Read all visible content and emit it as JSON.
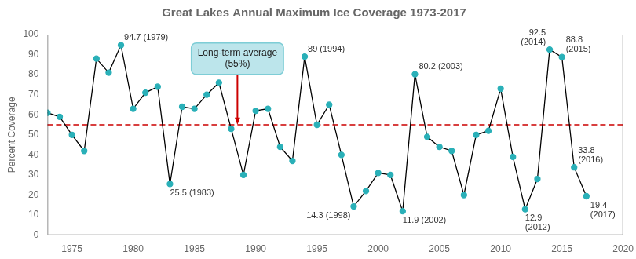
{
  "chart_data": {
    "type": "line",
    "title": "Great Lakes Annual Maximum Ice Coverage 1973-2017",
    "y_label": "Percent Coverage",
    "x": [
      1973,
      1974,
      1975,
      1976,
      1977,
      1978,
      1979,
      1980,
      1981,
      1982,
      1983,
      1984,
      1985,
      1986,
      1987,
      1988,
      1989,
      1990,
      1991,
      1992,
      1993,
      1994,
      1995,
      1996,
      1997,
      1998,
      1999,
      2000,
      2001,
      2002,
      2003,
      2004,
      2005,
      2006,
      2007,
      2008,
      2009,
      2010,
      2011,
      2012,
      2013,
      2014,
      2015,
      2016,
      2017
    ],
    "values": [
      61,
      59,
      50,
      42,
      88,
      81,
      94.7,
      63,
      71,
      74,
      25.5,
      64,
      63,
      70,
      76,
      53,
      30,
      62,
      63,
      44,
      37,
      89,
      55,
      65,
      40,
      14.3,
      22,
      31,
      30,
      11.9,
      80.2,
      49,
      44,
      42,
      20,
      50,
      52,
      73,
      39,
      12.9,
      28,
      92.5,
      88.8,
      33.8,
      19.4
    ],
    "color": "#2ab0b8",
    "marker": "circle",
    "xlim": [
      1973,
      2020
    ],
    "xticks": [
      1975,
      1980,
      1985,
      1990,
      1995,
      2000,
      2005,
      2010,
      2015,
      2020
    ],
    "ylim": [
      0,
      100
    ],
    "yticks": [
      0,
      10,
      20,
      30,
      40,
      50,
      60,
      70,
      80,
      90,
      100
    ],
    "grid": false,
    "legend": false,
    "long_term_average": {
      "value": 55,
      "color": "#cc0000",
      "line_style": "dashed",
      "label": "Long-term average\n(55%)"
    },
    "annotations": [
      {
        "x": 1979,
        "y": 94.7,
        "text": "94.7 (1979)"
      },
      {
        "x": 1983,
        "y": 25.5,
        "text": "25.5 (1983)"
      },
      {
        "x": 1994,
        "y": 89,
        "text": "89 (1994)"
      },
      {
        "x": 1998,
        "y": 14.3,
        "text": "14.3 (1998)"
      },
      {
        "x": 2002,
        "y": 11.9,
        "text": "11.9 (2002)"
      },
      {
        "x": 2003,
        "y": 80.2,
        "text": "80.2 (2003)"
      },
      {
        "x": 2012,
        "y": 12.9,
        "text": "12.9\n(2012)"
      },
      {
        "x": 2014,
        "y": 92.5,
        "text": "92.5\n(2014)"
      },
      {
        "x": 2015,
        "y": 88.8,
        "text": "88.8\n(2015)"
      },
      {
        "x": 2016,
        "y": 33.8,
        "text": "33.8\n(2016)"
      },
      {
        "x": 2017,
        "y": 19.4,
        "text": "19.4\n(2017)"
      }
    ]
  }
}
